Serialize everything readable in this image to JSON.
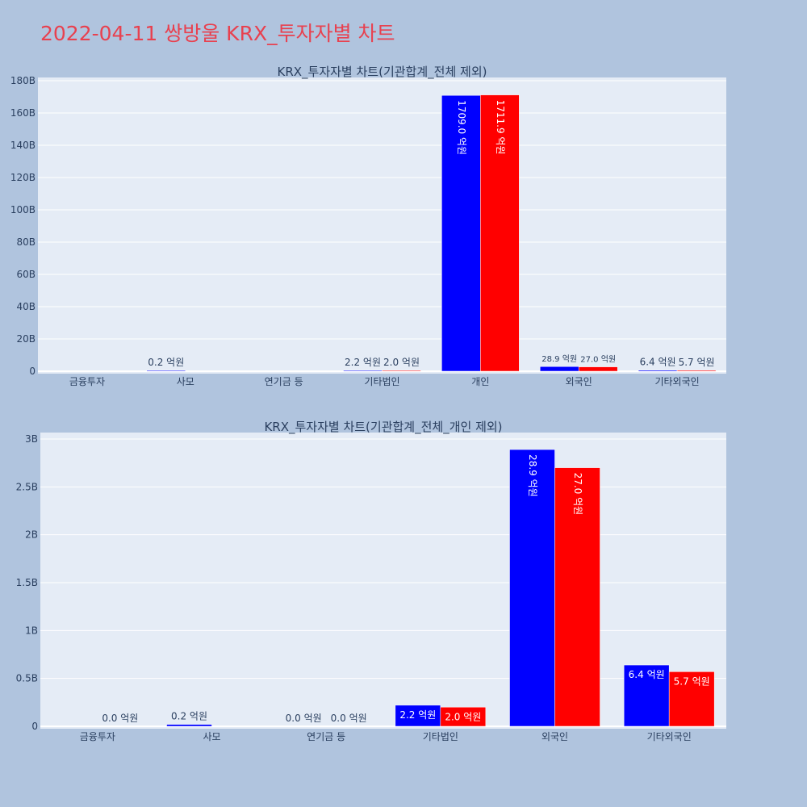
{
  "page_title": "2022-04-11 쌍방울 KRX_투자자별 차트",
  "colors": {
    "buy": "#0000ff",
    "sell": "#ff0000",
    "background": "#b0c4de",
    "plot_bg": "#e5ecf6",
    "title": "#e8414f"
  },
  "chart_data": [
    {
      "type": "bar",
      "title": "KRX_투자자별 차트(기관합계_전체 제외)",
      "categories": [
        "금융투자",
        "사모",
        "연기금 등",
        "기타법인",
        "개인",
        "외국인",
        "기타외국인"
      ],
      "ylim": [
        0,
        180000000000
      ],
      "y_ticks": [
        0,
        20000000000,
        40000000000,
        60000000000,
        80000000000,
        100000000000,
        120000000000,
        140000000000,
        160000000000,
        180000000000
      ],
      "y_tick_labels": [
        "0",
        "20B",
        "40B",
        "60B",
        "80B",
        "100B",
        "120B",
        "140B",
        "160B",
        "180B"
      ],
      "grid": true,
      "series": [
        {
          "color": "#0000ff",
          "values": [
            null,
            20000000,
            null,
            220000000,
            170900000000,
            2890000000,
            640000000
          ],
          "labels": [
            "",
            "0.2 억원",
            "",
            "2.2 억원",
            "1709.0 억원",
            "28.9 억원",
            "6.4 억원"
          ]
        },
        {
          "color": "#ff0000",
          "values": [
            null,
            null,
            null,
            200000000,
            171190000000,
            2700000000,
            570000000
          ],
          "labels": [
            "",
            "",
            "",
            "2.0 억원",
            "1711.9 억원",
            "27.0 억원",
            "5.7 억원"
          ]
        }
      ]
    },
    {
      "type": "bar",
      "title": "KRX_투자자별 차트(기관합계_전체_개인 제외)",
      "categories": [
        "금융투자",
        "사모",
        "연기금 등",
        "기타법인",
        "외국인",
        "기타외국인"
      ],
      "ylim": [
        0,
        3000000000
      ],
      "y_ticks": [
        0,
        500000000,
        1000000000,
        1500000000,
        2000000000,
        2500000000,
        3000000000
      ],
      "y_tick_labels": [
        "0",
        "0.5B",
        "1B",
        "1.5B",
        "2B",
        "2.5B",
        "3B"
      ],
      "grid": true,
      "series": [
        {
          "color": "#0000ff",
          "values": [
            null,
            20000000,
            0,
            220000000,
            2890000000,
            640000000
          ],
          "labels": [
            "",
            "0.2 억원",
            "0.0 억원",
            "2.2 억원",
            "28.9 억원",
            "6.4 억원"
          ]
        },
        {
          "color": "#ff0000",
          "values": [
            0,
            null,
            0,
            200000000,
            2700000000,
            570000000
          ],
          "labels": [
            "0.0 억원",
            "",
            "0.0 억원",
            "2.0 억원",
            "27.0 억원",
            "5.7 억원"
          ]
        }
      ]
    }
  ]
}
